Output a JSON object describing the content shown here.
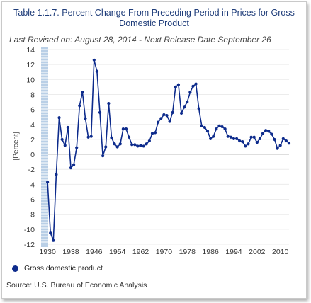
{
  "chart_data": {
    "type": "line",
    "title": "Table 1.1.7. Percent Change From Preceding Period in Prices for Gross Domestic Product",
    "subtitle": "Last Revised on: August 28, 2014 - Next Release Date September 26",
    "ylabel": "[Percent]",
    "ylim": [
      -12,
      14
    ],
    "yticks": [
      14,
      12,
      10,
      8,
      6,
      4,
      2,
      0,
      -2,
      -4,
      -6,
      -8,
      -10,
      -12
    ],
    "xlim": [
      1929,
      2013
    ],
    "xticks": [
      1930,
      1938,
      1946,
      1954,
      1962,
      1970,
      1978,
      1986,
      1994,
      2002,
      2010
    ],
    "grid": true,
    "legend_position": "bottom-left",
    "series": [
      {
        "name": "Gross domestic product",
        "color": "#0d2b8c",
        "x": [
          1930,
          1931,
          1932,
          1933,
          1934,
          1935,
          1936,
          1937,
          1938,
          1939,
          1940,
          1941,
          1942,
          1943,
          1944,
          1945,
          1946,
          1947,
          1948,
          1949,
          1950,
          1951,
          1952,
          1953,
          1954,
          1955,
          1956,
          1957,
          1958,
          1959,
          1960,
          1961,
          1962,
          1963,
          1964,
          1965,
          1966,
          1967,
          1968,
          1969,
          1970,
          1971,
          1972,
          1973,
          1974,
          1975,
          1976,
          1977,
          1978,
          1979,
          1980,
          1981,
          1982,
          1983,
          1984,
          1985,
          1986,
          1987,
          1988,
          1989,
          1990,
          1991,
          1992,
          1993,
          1994,
          1995,
          1996,
          1997,
          1998,
          1999,
          2000,
          2001,
          2002,
          2003,
          2004,
          2005,
          2006,
          2007,
          2008,
          2009,
          2010,
          2011,
          2012,
          2013
        ],
        "values": [
          -3.7,
          -10.5,
          -11.5,
          -2.7,
          4.9,
          2.0,
          1.2,
          3.6,
          -1.8,
          -1.4,
          0.9,
          6.5,
          8.3,
          4.8,
          2.3,
          2.4,
          12.6,
          11.1,
          5.6,
          -0.2,
          1.0,
          6.8,
          2.2,
          1.4,
          1.0,
          1.4,
          3.4,
          3.4,
          2.3,
          1.3,
          1.3,
          1.1,
          1.2,
          1.1,
          1.4,
          1.8,
          2.8,
          2.9,
          4.3,
          4.8,
          5.3,
          5.2,
          4.4,
          5.6,
          9.0,
          9.3,
          5.5,
          6.3,
          7.0,
          8.3,
          9.1,
          9.4,
          6.1,
          3.8,
          3.6,
          3.1,
          2.1,
          2.4,
          3.4,
          3.8,
          3.7,
          3.4,
          2.4,
          2.3,
          2.1,
          2.1,
          1.8,
          1.7,
          1.1,
          1.4,
          2.3,
          2.3,
          1.6,
          2.1,
          2.8,
          3.2,
          3.1,
          2.7,
          2.0,
          0.8,
          1.2,
          2.1,
          1.8,
          1.5
        ]
      }
    ]
  },
  "legend": {
    "label": "Gross domestic product"
  },
  "source": "Source: U.S. Bureau of Economic  Analysis"
}
